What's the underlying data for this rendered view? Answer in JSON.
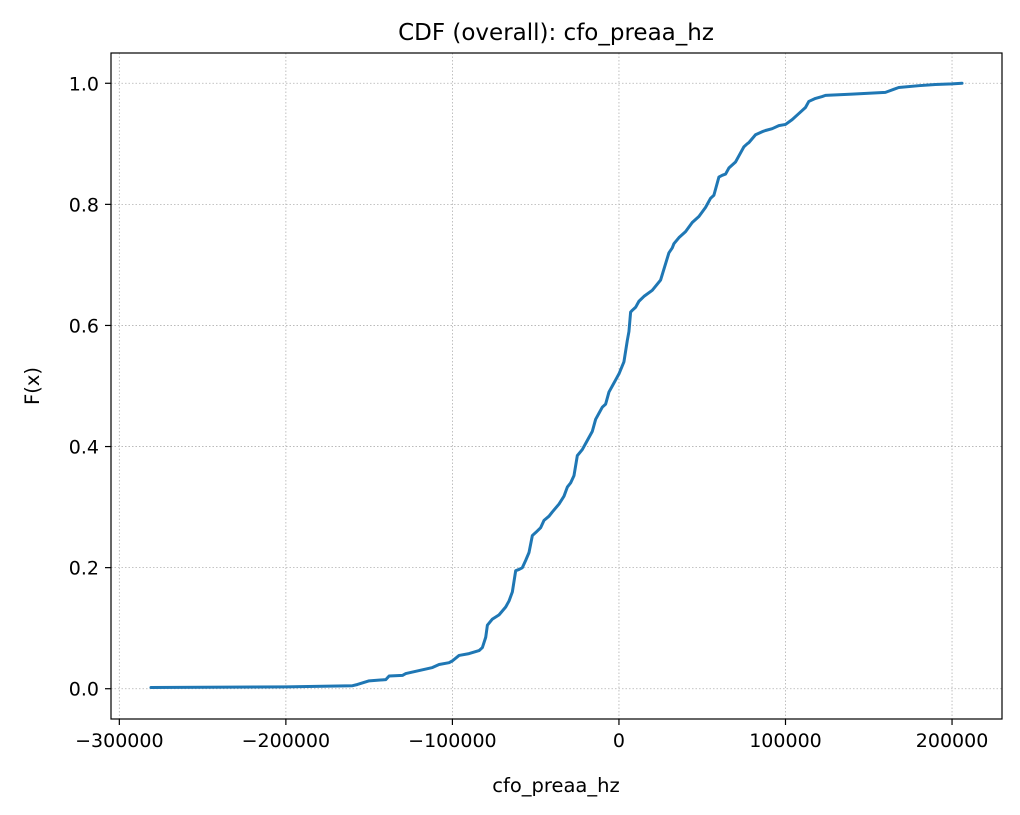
{
  "chart_data": {
    "type": "line",
    "title": "CDF (overall): cfo_preaa_hz",
    "xlabel": "cfo_preaa_hz",
    "ylabel": "F(x)",
    "xlim": [
      -305000,
      230000
    ],
    "ylim": [
      -0.05,
      1.05
    ],
    "xticks": [
      -300000,
      -200000,
      -100000,
      0,
      100000,
      200000
    ],
    "xtick_labels": [
      "−300000",
      "−200000",
      "−100000",
      "0",
      "100000",
      "200000"
    ],
    "yticks": [
      0.0,
      0.2,
      0.4,
      0.6,
      0.8,
      1.0
    ],
    "ytick_labels": [
      "0.0",
      "0.2",
      "0.4",
      "0.6",
      "0.8",
      "1.0"
    ],
    "grid": true,
    "color": "#1f77b4",
    "series": [
      {
        "x": [
          -281000,
          -200000,
          -160000,
          -157000,
          -150000,
          -140000,
          -138000,
          -130000,
          -128000,
          -120000,
          -112000,
          -108000,
          -102000,
          -100000,
          -96000,
          -90000,
          -84000,
          -82000,
          -80000,
          -79000,
          -76000,
          -72000,
          -68000,
          -66000,
          -64000,
          -62000,
          -60000,
          -58000,
          -56000,
          -54000,
          -52000,
          -50000,
          -47000,
          -45000,
          -42000,
          -40000,
          -36000,
          -33000,
          -31000,
          -29000,
          -27000,
          -25000,
          -22000,
          -20000,
          -16000,
          -14000,
          -12000,
          -10000,
          -8000,
          -6000,
          -4000,
          -2000,
          0,
          3000,
          5000,
          6000,
          7000,
          8000,
          10000,
          12000,
          15000,
          20000,
          25000,
          30000,
          32000,
          33000,
          36000,
          40000,
          44000,
          48000,
          52000,
          55000,
          57000,
          60000,
          62000,
          64000,
          66000,
          70000,
          72000,
          75000,
          77000,
          78000,
          82000,
          86000,
          88000,
          92000,
          96000,
          100000,
          104000,
          108000,
          112000,
          114000,
          118000,
          122000,
          124000,
          140000,
          160000,
          165000,
          168000,
          180000,
          190000,
          200000,
          206000
        ],
        "y": [
          0.002,
          0.003,
          0.005,
          0.007,
          0.013,
          0.015,
          0.021,
          0.022,
          0.025,
          0.03,
          0.035,
          0.04,
          0.043,
          0.046,
          0.055,
          0.058,
          0.063,
          0.068,
          0.085,
          0.105,
          0.115,
          0.122,
          0.135,
          0.145,
          0.16,
          0.195,
          0.197,
          0.2,
          0.212,
          0.225,
          0.253,
          0.258,
          0.266,
          0.278,
          0.285,
          0.292,
          0.305,
          0.318,
          0.333,
          0.34,
          0.352,
          0.385,
          0.395,
          0.405,
          0.425,
          0.445,
          0.455,
          0.465,
          0.47,
          0.49,
          0.5,
          0.51,
          0.52,
          0.54,
          0.575,
          0.59,
          0.622,
          0.625,
          0.63,
          0.64,
          0.648,
          0.658,
          0.675,
          0.72,
          0.728,
          0.735,
          0.745,
          0.755,
          0.77,
          0.78,
          0.795,
          0.81,
          0.815,
          0.845,
          0.848,
          0.85,
          0.86,
          0.87,
          0.88,
          0.895,
          0.9,
          0.902,
          0.915,
          0.92,
          0.922,
          0.925,
          0.93,
          0.932,
          0.94,
          0.95,
          0.96,
          0.97,
          0.975,
          0.978,
          0.98,
          0.982,
          0.985,
          0.99,
          0.993,
          0.996,
          0.998,
          0.999,
          1.0
        ]
      }
    ]
  }
}
